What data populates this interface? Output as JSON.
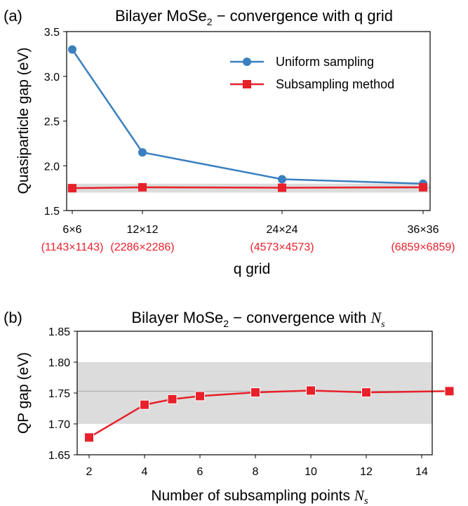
{
  "colors": {
    "uniform": "#3a7fbf",
    "subsampling": "#e8202a",
    "band": "#dcdcdc",
    "refline": "#a8a8a8"
  },
  "chart_data": [
    {
      "panel_label": "(a)",
      "type": "line",
      "title": "Bilayer MoSe",
      "title_sub": "2",
      "title_suffix": " − convergence with q grid",
      "xlabel": "q grid",
      "ylabel": "Quasiparticle gap (eV)",
      "x": [
        6,
        12,
        24,
        36
      ],
      "xtick_labels": [
        "6×6",
        "12×12",
        "24×24",
        "36×36"
      ],
      "xtick_sublabels": [
        "(1143×1143)",
        "(2286×2286)",
        "(4573×4573)",
        "(6859×6859)"
      ],
      "yticks": [
        "1.5",
        "2.0",
        "2.5",
        "3.0",
        "3.5"
      ],
      "ylim": [
        1.5,
        3.5
      ],
      "band": [
        1.7,
        1.8
      ],
      "refline": 1.753,
      "legend_position": "top-right",
      "series": [
        {
          "name": "Uniform sampling",
          "marker": "circle",
          "values": [
            3.3,
            2.15,
            1.85,
            1.8
          ]
        },
        {
          "name": "Subsampling method",
          "marker": "square",
          "values": [
            1.75,
            1.76,
            1.755,
            1.76
          ]
        }
      ]
    },
    {
      "panel_label": "(b)",
      "type": "line",
      "title": "Bilayer MoSe",
      "title_sub": "2",
      "title_suffix": " − convergence with ",
      "title_math": "N",
      "title_math_sub": "s",
      "xlabel": "Number of subsampling points ",
      "xlabel_math": "N",
      "xlabel_math_sub": "s",
      "ylabel": "QP gap (eV)",
      "x": [
        2,
        4,
        5,
        6,
        8,
        10,
        12,
        15
      ],
      "xticks": [
        "2",
        "4",
        "6",
        "8",
        "10",
        "12",
        "14"
      ],
      "yticks": [
        "1.65",
        "1.70",
        "1.75",
        "1.80",
        "1.85"
      ],
      "ylim": [
        1.65,
        1.85
      ],
      "xlim": [
        1.5,
        15.5
      ],
      "band": [
        1.7,
        1.8
      ],
      "refline": 1.753,
      "series": [
        {
          "name": "",
          "marker": "square",
          "values": [
            1.678,
            1.731,
            1.74,
            1.745,
            1.751,
            1.754,
            1.751,
            1.753
          ]
        }
      ]
    }
  ]
}
